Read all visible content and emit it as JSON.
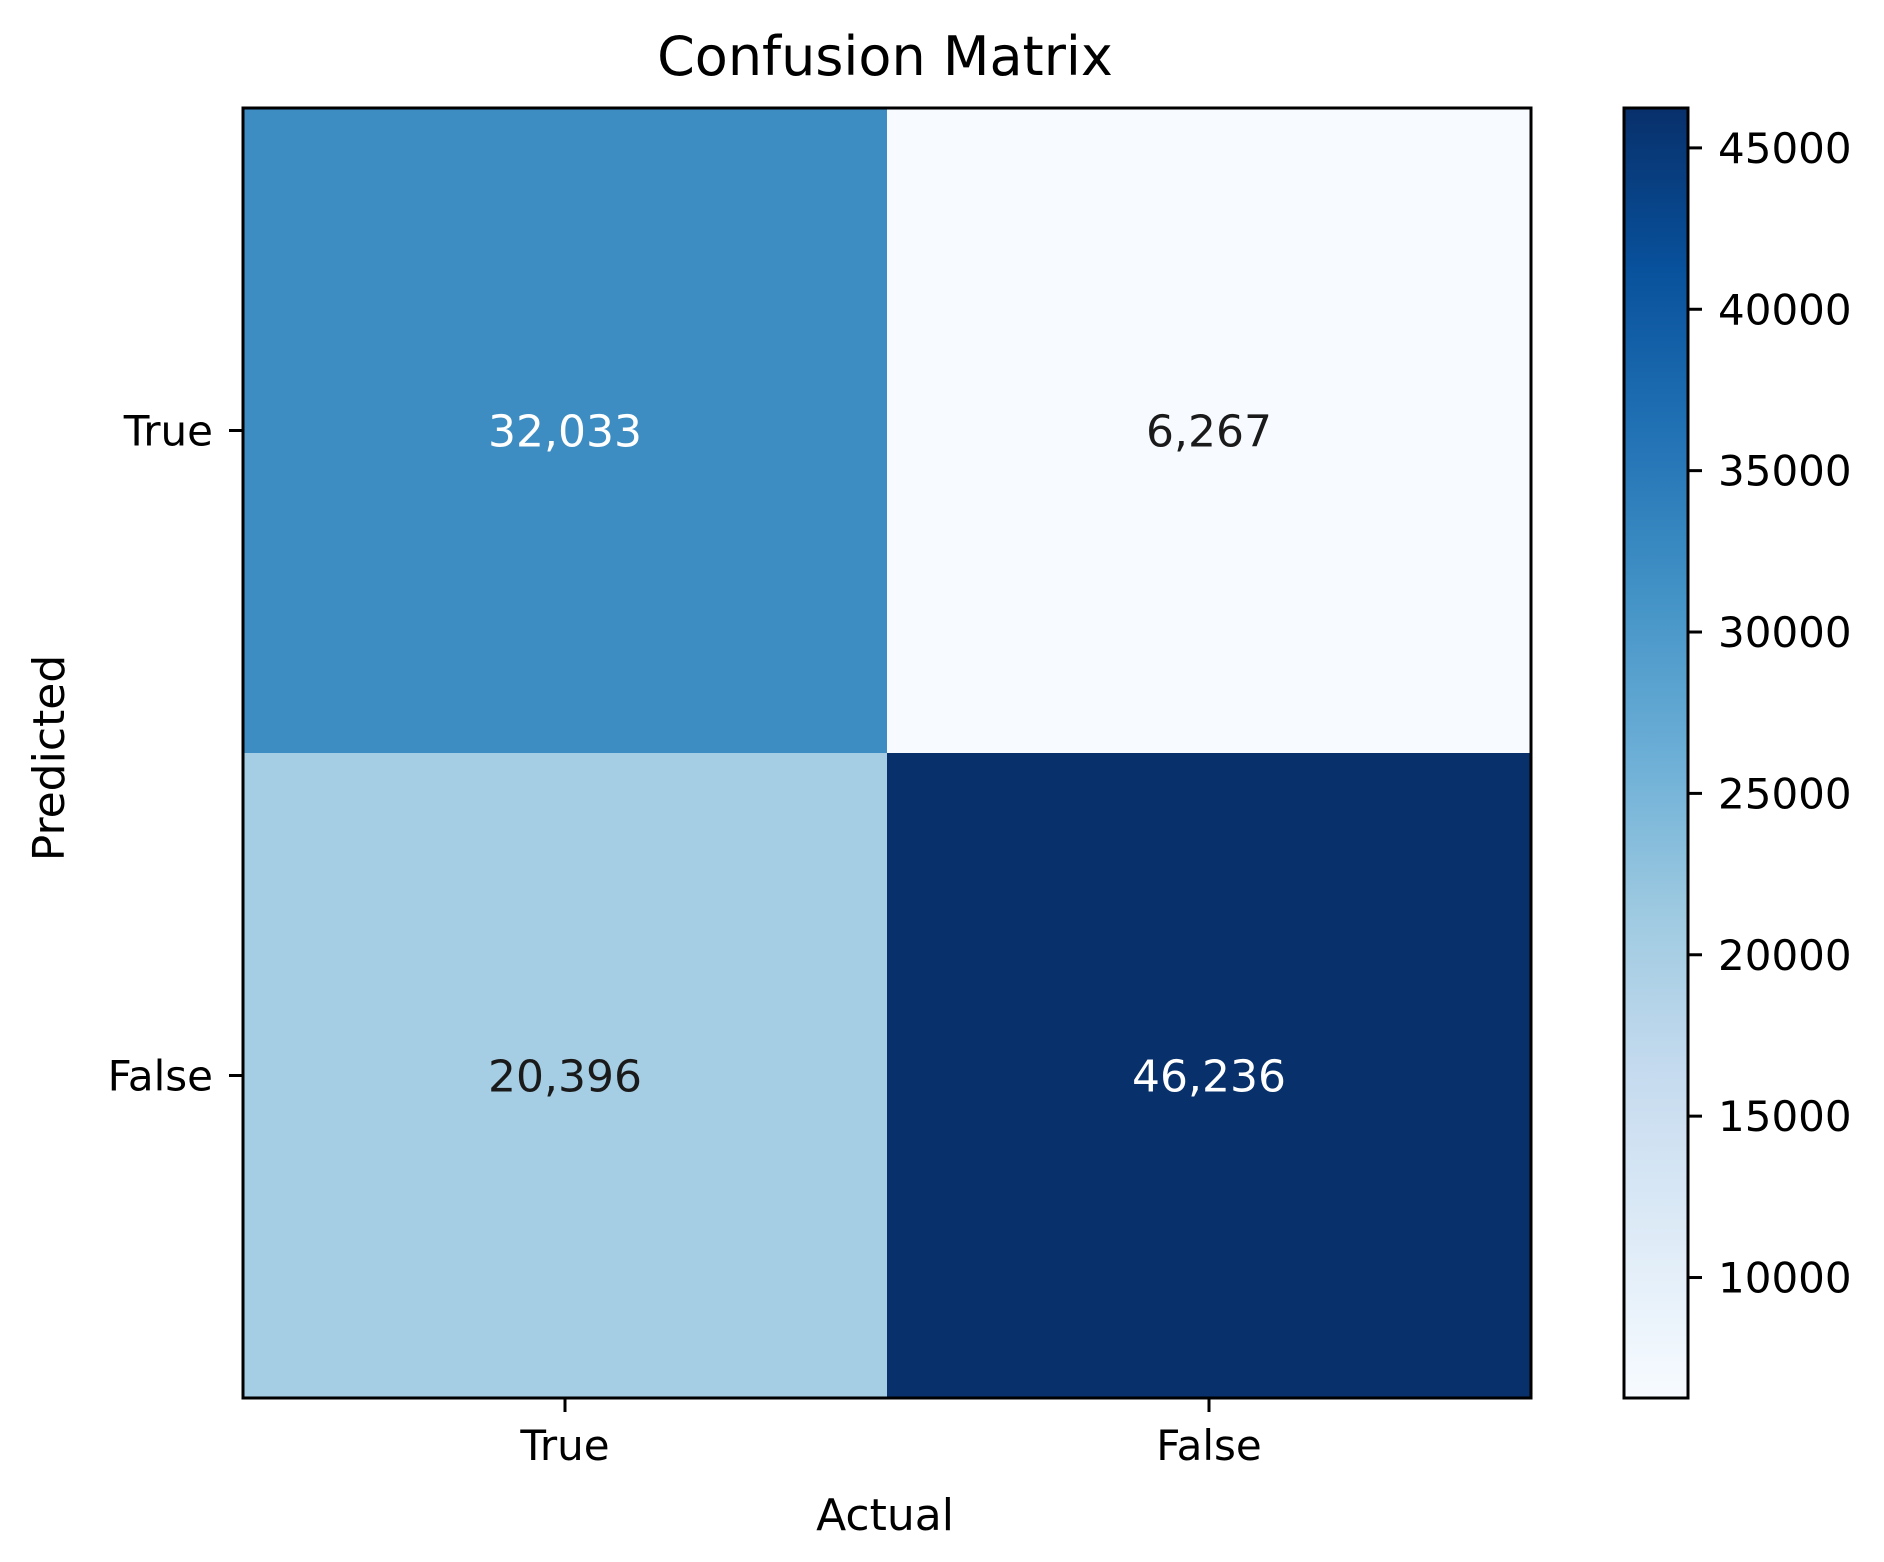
{
  "chart_data": {
    "type": "heatmap",
    "title": "Confusion Matrix",
    "xlabel": "Actual",
    "ylabel": "Predicted",
    "x_categories": [
      "True",
      "False"
    ],
    "y_categories": [
      "True",
      "False"
    ],
    "values": [
      [
        32033,
        6267
      ],
      [
        20396,
        46236
      ]
    ],
    "cell_labels": [
      [
        "32,033",
        "6,267"
      ],
      [
        "20,396",
        "46,236"
      ]
    ],
    "colormap": "Blues",
    "colorbar": {
      "vmin": 6267,
      "vmax": 46236,
      "ticks": [
        10000,
        15000,
        20000,
        25000,
        30000,
        35000,
        40000,
        45000
      ],
      "tick_labels": [
        "10000",
        "15000",
        "20000",
        "25000",
        "30000",
        "35000",
        "40000",
        "45000"
      ],
      "placement": "right"
    },
    "grid": false,
    "colors": {
      "light_text": "#ffffff",
      "dark_text": "#1a1a1a"
    }
  }
}
